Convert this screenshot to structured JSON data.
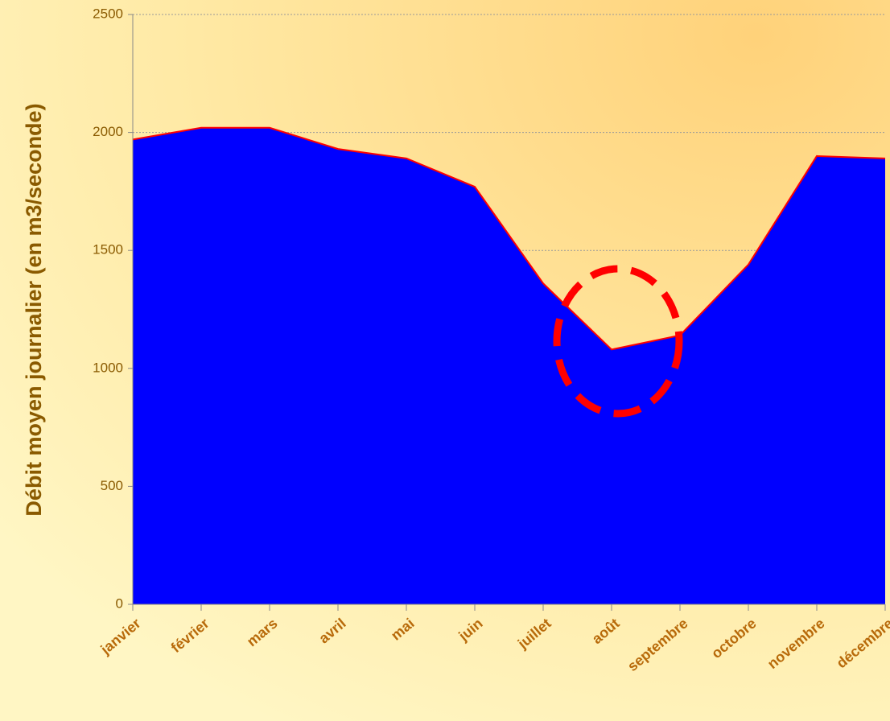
{
  "chart_data": {
    "type": "area",
    "y_label": "Débit moyen journalier (en m3/seconde)",
    "categories": [
      "janvier",
      "février",
      "mars",
      "avril",
      "mai",
      "juin",
      "juillet",
      "août",
      "septembre",
      "octobre",
      "novembre",
      "décembre"
    ],
    "values": [
      1970,
      2020,
      2020,
      1930,
      1890,
      1770,
      1360,
      1080,
      1140,
      1440,
      1900,
      1890
    ],
    "color": "#0000ff",
    "line_color": "#ff0000",
    "ylim": [
      0,
      2500
    ],
    "yticks": [
      0,
      500,
      1000,
      1500,
      2000,
      2500
    ],
    "grid": true
  }
}
